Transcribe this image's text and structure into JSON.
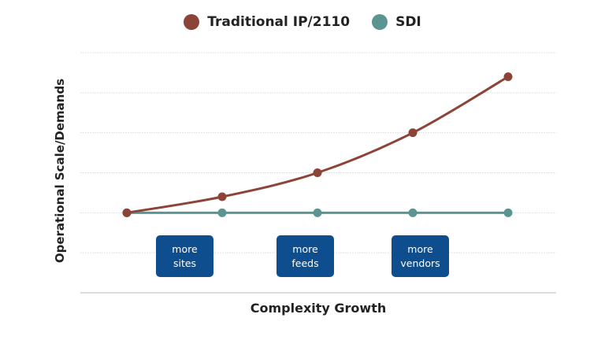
{
  "chart_data": {
    "type": "line",
    "title": "",
    "xlabel": "Complexity Growth",
    "ylabel": "Operational Scale/Demands",
    "x": [
      0,
      1,
      2,
      3,
      4
    ],
    "ylim": [
      0,
      6
    ],
    "grid": true,
    "legend_placement": "top-center",
    "series": [
      {
        "name": "Traditional IP/2110",
        "color": "#8c4438",
        "values": [
          2,
          2.4,
          3,
          4,
          5.4
        ]
      },
      {
        "name": "SDI",
        "color": "#5b9591",
        "values": [
          2,
          2,
          2,
          2,
          2
        ]
      }
    ],
    "annotations": [
      {
        "line1": "more",
        "line2": "sites"
      },
      {
        "line1": "more",
        "line2": "feeds"
      },
      {
        "line1": "more",
        "line2": "vendors"
      }
    ],
    "annotation_color": "#0e4e8e"
  }
}
